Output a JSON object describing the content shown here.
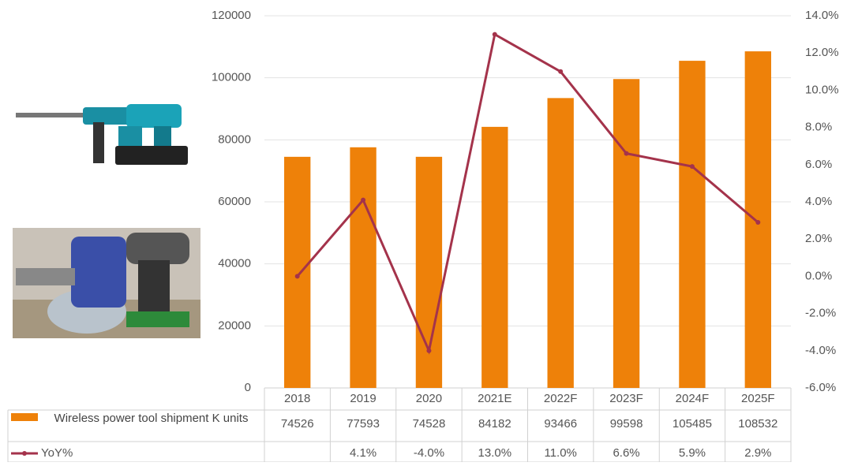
{
  "chart_data": {
    "type": "bar-line",
    "categories": [
      "2018",
      "2019",
      "2020",
      "2021E",
      "2022F",
      "2023F",
      "2024F",
      "2025F"
    ],
    "series": [
      {
        "name": "Wireless power tool shipment K units",
        "type": "bar",
        "color": "#ee8109",
        "values": [
          74526,
          77593,
          74528,
          84182,
          93466,
          99598,
          105485,
          108532
        ]
      },
      {
        "name": "YoY%",
        "type": "line",
        "axis": "y2",
        "color": "#a4334b",
        "values": [
          0,
          4.1,
          -4.0,
          13.0,
          11.0,
          6.6,
          5.9,
          2.9
        ],
        "value_labels": [
          null,
          "4.1%",
          "-4.0%",
          "13.0%",
          "11.0%",
          "6.6%",
          "5.9%",
          "2.9%"
        ]
      }
    ],
    "ylim": [
      0,
      120000
    ],
    "yticks": [
      0,
      20000,
      40000,
      60000,
      80000,
      100000,
      120000
    ],
    "y2lim": [
      -6,
      14
    ],
    "y2ticks": [
      {
        "value": -6,
        "label": "-6.0%"
      },
      {
        "value": -4,
        "label": "-4.0%"
      },
      {
        "value": -2,
        "label": "-2.0%"
      },
      {
        "value": 0,
        "label": "0.0%"
      },
      {
        "value": 2,
        "label": "2.0%"
      },
      {
        "value": 4,
        "label": "4.0%"
      },
      {
        "value": 6,
        "label": "6.0%"
      },
      {
        "value": 8,
        "label": "8.0%"
      },
      {
        "value": 10,
        "label": "10.0%"
      },
      {
        "value": 12,
        "label": "12.0%"
      },
      {
        "value": 14,
        "label": "14.0%"
      }
    ],
    "grid": true
  }
}
